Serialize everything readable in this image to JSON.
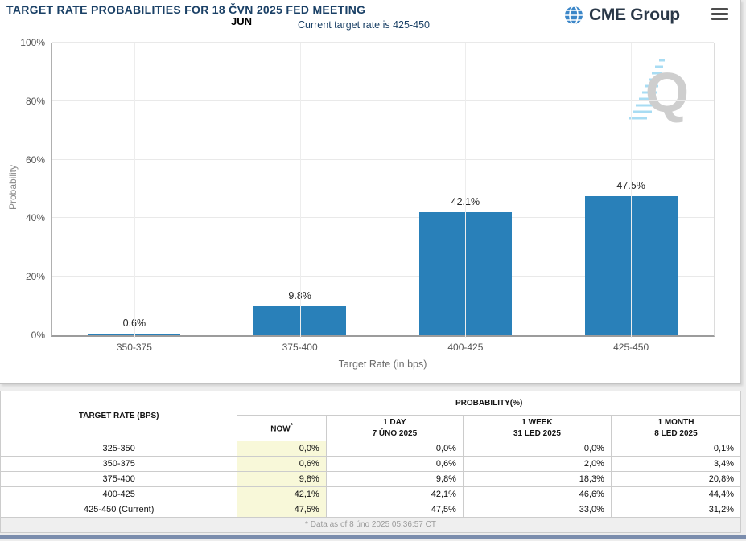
{
  "header": {
    "title": "TARGET RATE PROBABILITIES FOR 18 ČVN 2025 FED MEETING",
    "month_label": "JUN",
    "current_rate_note": "Current target rate is 425-450",
    "brand": "CME Group",
    "icons": {
      "globe": "globe-icon",
      "menu": "hamburger-icon"
    }
  },
  "watermark_letter": "Q",
  "chart_data": {
    "type": "bar",
    "title": "TARGET RATE PROBABILITIES FOR 18 ČVN 2025 FED MEETING",
    "categories": [
      "350-375",
      "375-400",
      "400-425",
      "425-450"
    ],
    "values": [
      0.6,
      9.8,
      42.1,
      47.5
    ],
    "data_labels": [
      "0.6%",
      "9.8%",
      "42.1%",
      "47.5%"
    ],
    "xlabel": "Target Rate (in bps)",
    "ylabel": "Probability",
    "ylim": [
      0,
      100
    ],
    "yticks": [
      "0%",
      "20%",
      "40%",
      "60%",
      "80%",
      "100%"
    ],
    "grid": true,
    "legend": "none",
    "bar_color": "#2980b9"
  },
  "table": {
    "target_header": "TARGET RATE (BPS)",
    "group_header": "PROBABILITY(%)",
    "sub_headers": [
      {
        "line1": "NOW",
        "sup": "*",
        "line2": ""
      },
      {
        "line1": "1 DAY",
        "sup": "",
        "line2": "7 ÚNO 2025"
      },
      {
        "line1": "1 WEEK",
        "sup": "",
        "line2": "31 LED 2025"
      },
      {
        "line1": "1 MONTH",
        "sup": "",
        "line2": "8 LED 2025"
      }
    ],
    "rows": [
      {
        "rate": "325-350",
        "now": "0,0%",
        "day": "0,0%",
        "week": "0,0%",
        "month": "0,1%"
      },
      {
        "rate": "350-375",
        "now": "0,6%",
        "day": "0,6%",
        "week": "2,0%",
        "month": "3,4%"
      },
      {
        "rate": "375-400",
        "now": "9,8%",
        "day": "9,8%",
        "week": "18,3%",
        "month": "20,8%"
      },
      {
        "rate": "400-425",
        "now": "42,1%",
        "day": "42,1%",
        "week": "46,6%",
        "month": "44,4%"
      },
      {
        "rate": "425-450 (Current)",
        "now": "47,5%",
        "day": "47,5%",
        "week": "33,0%",
        "month": "31,2%"
      }
    ],
    "footnote": "* Data as of 8 úno 2025 05:36:57 CT"
  },
  "colors": {
    "bar": "#2980b9",
    "title_text": "#1a4066",
    "now_column_bg": "#f8f8d9",
    "bottom_bar": "#7b8dad"
  }
}
